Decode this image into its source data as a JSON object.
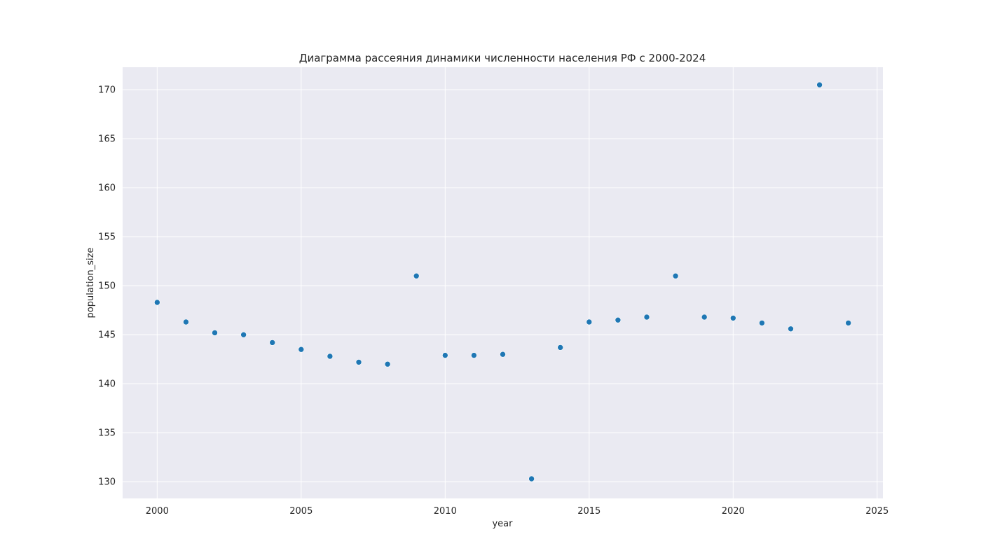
{
  "chart_data": {
    "type": "scatter",
    "title": "Диаграмма рассеяния динамики численности населения РФ с 2000-2024",
    "xlabel": "year",
    "ylabel": "population_size",
    "xlim": [
      1998.8,
      2025.2
    ],
    "ylim": [
      128.3,
      172.3
    ],
    "xticks": [
      2000,
      2005,
      2010,
      2015,
      2020,
      2025
    ],
    "yticks": [
      130,
      135,
      140,
      145,
      150,
      155,
      160,
      165,
      170
    ],
    "grid": true,
    "legend": "none",
    "colors": {
      "plot_background": "#eaeaf2",
      "grid": "#ffffff",
      "marker": "#1f77b4",
      "text": "#262626"
    },
    "x": [
      2000,
      2001,
      2002,
      2003,
      2004,
      2005,
      2006,
      2007,
      2008,
      2009,
      2010,
      2011,
      2012,
      2013,
      2014,
      2015,
      2016,
      2017,
      2018,
      2019,
      2020,
      2021,
      2022,
      2023,
      2024
    ],
    "y": [
      148.3,
      146.3,
      145.2,
      145.0,
      144.2,
      143.5,
      142.8,
      142.2,
      142.0,
      151.0,
      142.9,
      142.9,
      143.0,
      130.3,
      143.7,
      146.3,
      146.5,
      146.8,
      151.0,
      146.8,
      146.7,
      146.2,
      145.6,
      170.5,
      146.2
    ]
  }
}
